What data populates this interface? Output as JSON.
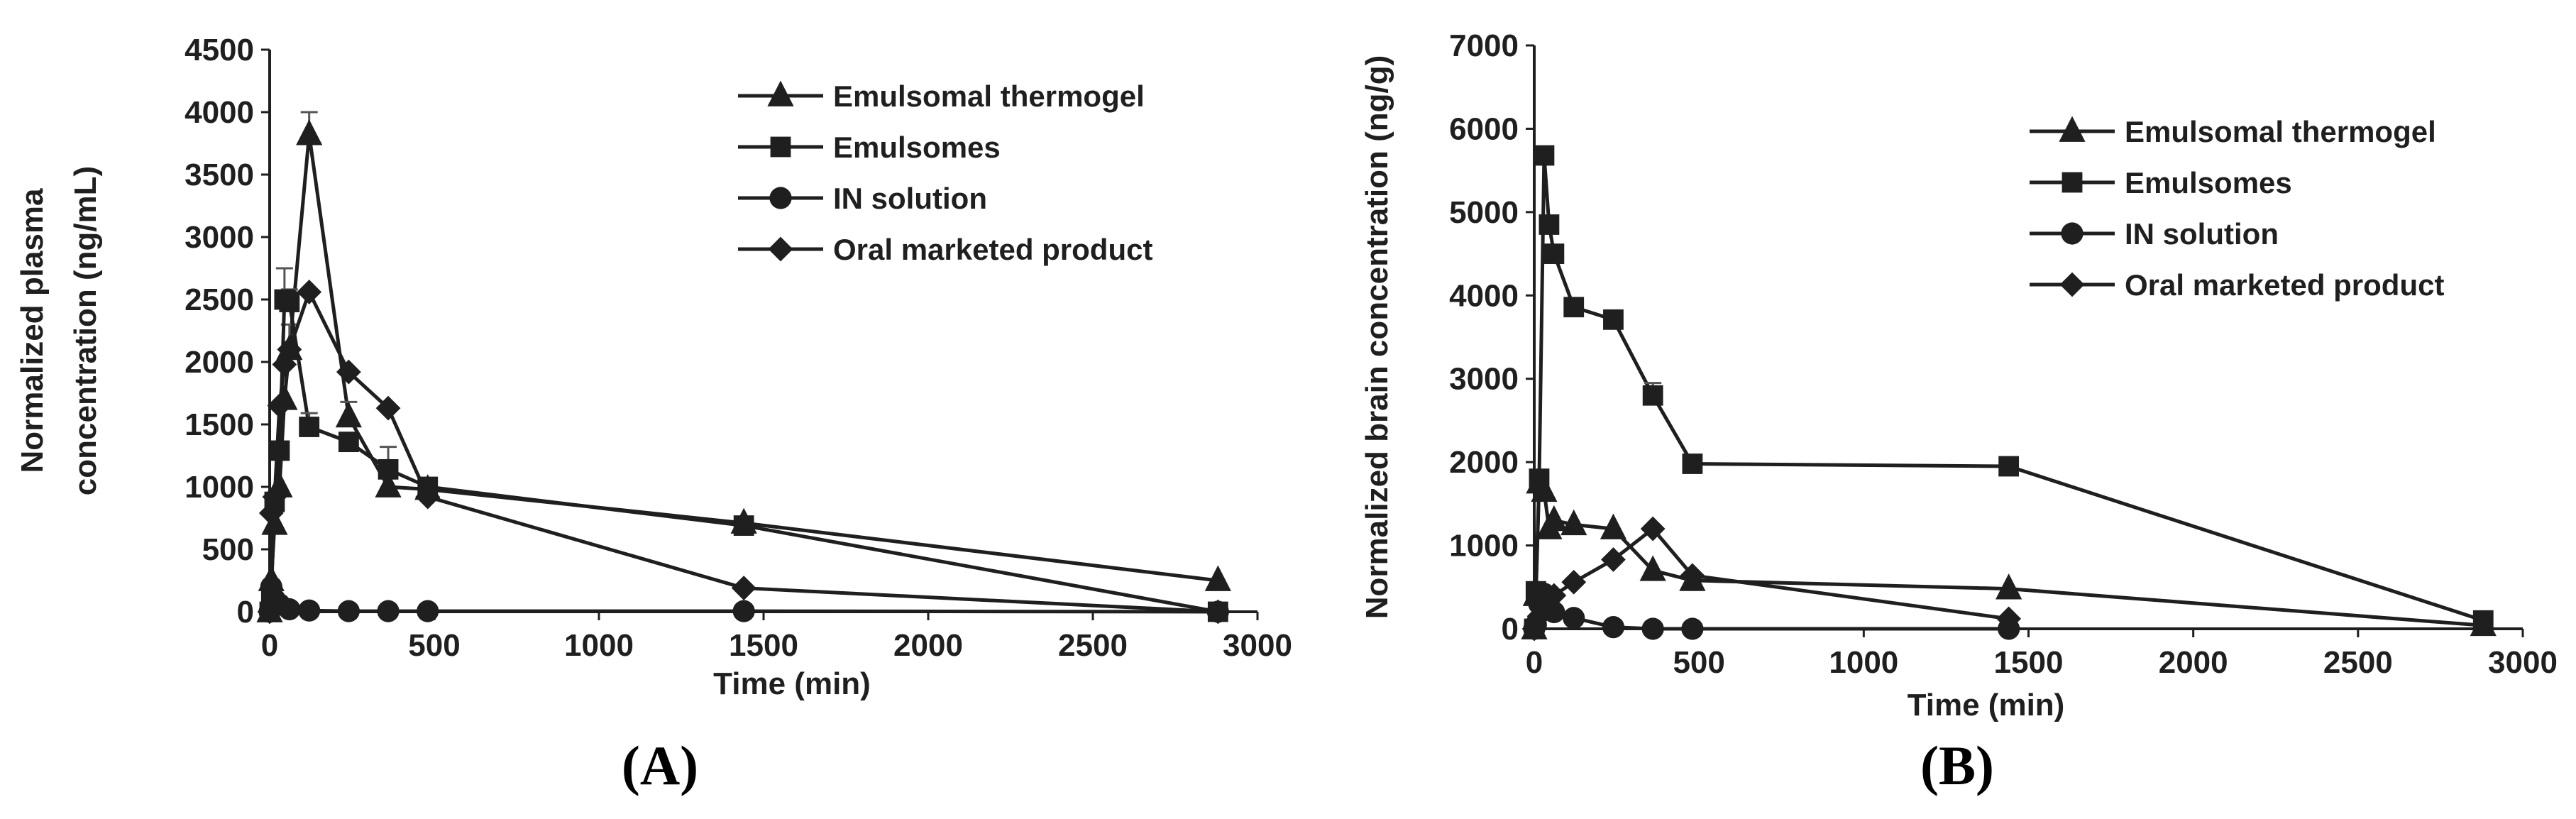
{
  "chart_data": [
    {
      "type": "line",
      "panel": "(A)",
      "panel_letter": "A",
      "xlabel": "Time (min)",
      "ylabel_line1": "Normalized plasma",
      "ylabel_line2": "concentration (ng/mL)",
      "xlim": [
        0,
        3000
      ],
      "ylim": [
        0,
        4500
      ],
      "xticks": [
        0,
        500,
        1000,
        1500,
        2000,
        2500,
        3000
      ],
      "yticks": [
        0,
        500,
        1000,
        1500,
        2000,
        2500,
        3000,
        3500,
        4000,
        4500
      ],
      "legend_position": "top-right",
      "series": [
        {
          "name": "Emulsomal thermogel",
          "marker": "triangle",
          "x": [
            0,
            5,
            15,
            30,
            45,
            60,
            120,
            240,
            360,
            480,
            1440,
            2880
          ],
          "y": [
            0,
            250,
            700,
            1000,
            1700,
            2100,
            3820,
            1560,
            1000,
            980,
            710,
            250
          ],
          "err": [
            0,
            0,
            0,
            0,
            0,
            200,
            180,
            120,
            80,
            0,
            30,
            0
          ]
        },
        {
          "name": "Emulsomes",
          "marker": "square",
          "x": [
            0,
            5,
            15,
            30,
            45,
            60,
            120,
            240,
            360,
            480,
            1440,
            2880
          ],
          "y": [
            0,
            150,
            880,
            1290,
            2500,
            2480,
            1480,
            1360,
            1140,
            1000,
            690,
            0
          ],
          "err": [
            0,
            0,
            0,
            0,
            250,
            100,
            110,
            60,
            180,
            0,
            40,
            0
          ]
        },
        {
          "name": "IN solution",
          "marker": "circle",
          "x": [
            0,
            5,
            15,
            30,
            60,
            120,
            240,
            360,
            480,
            1440,
            2880
          ],
          "y": [
            0,
            200,
            100,
            60,
            20,
            10,
            5,
            5,
            5,
            5,
            0
          ],
          "err": [
            0,
            0,
            0,
            0,
            0,
            0,
            0,
            0,
            0,
            0,
            0
          ]
        },
        {
          "name": "Oral marketed product",
          "marker": "diamond",
          "x": [
            0,
            5,
            15,
            30,
            45,
            60,
            120,
            240,
            360,
            480,
            1440,
            2880
          ],
          "y": [
            0,
            790,
            920,
            1650,
            1980,
            2100,
            2560,
            1920,
            1630,
            920,
            190,
            0
          ],
          "err": [
            0,
            0,
            0,
            0,
            0,
            0,
            0,
            0,
            0,
            0,
            0,
            0
          ]
        }
      ]
    },
    {
      "type": "line",
      "panel": "(B)",
      "panel_letter": "B",
      "xlabel": "Time (min)",
      "ylabel_line1": "Normalized brain concentration (ng/g)",
      "ylabel_line2": "",
      "xlim": [
        0,
        3000
      ],
      "ylim": [
        0,
        7000
      ],
      "xticks": [
        0,
        500,
        1000,
        1500,
        2000,
        2500,
        3000
      ],
      "yticks": [
        0,
        1000,
        2000,
        3000,
        4000,
        5000,
        6000,
        7000
      ],
      "legend_position": "top-right",
      "series": [
        {
          "name": "Emulsomal thermogel",
          "marker": "triangle",
          "x": [
            0,
            5,
            15,
            30,
            45,
            60,
            120,
            240,
            360,
            480,
            1440,
            2880
          ],
          "y": [
            0,
            400,
            1750,
            1650,
            1200,
            1300,
            1250,
            1200,
            700,
            580,
            480,
            40
          ],
          "err": [
            0,
            0,
            0,
            0,
            0,
            0,
            0,
            0,
            0,
            0,
            0,
            0
          ]
        },
        {
          "name": "Emulsomes",
          "marker": "square",
          "x": [
            0,
            5,
            15,
            30,
            45,
            60,
            120,
            240,
            360,
            480,
            1440,
            2880
          ],
          "y": [
            0,
            450,
            1800,
            5680,
            4850,
            4500,
            3860,
            3710,
            2800,
            1980,
            1950,
            100
          ],
          "err": [
            0,
            0,
            0,
            0,
            0,
            0,
            0,
            100,
            150,
            0,
            0,
            0
          ]
        },
        {
          "name": "IN solution",
          "marker": "circle",
          "x": [
            0,
            5,
            15,
            30,
            60,
            120,
            240,
            360,
            480,
            1440
          ],
          "y": [
            0,
            50,
            300,
            420,
            200,
            130,
            20,
            0,
            0,
            0
          ],
          "err": [
            0,
            0,
            0,
            0,
            0,
            0,
            0,
            0,
            0,
            0
          ]
        },
        {
          "name": "Oral marketed product",
          "marker": "diamond",
          "x": [
            0,
            15,
            60,
            120,
            240,
            360,
            480,
            1440
          ],
          "y": [
            0,
            150,
            400,
            560,
            830,
            1200,
            640,
            120
          ],
          "err": [
            0,
            0,
            0,
            0,
            0,
            0,
            0,
            0
          ]
        }
      ]
    }
  ]
}
